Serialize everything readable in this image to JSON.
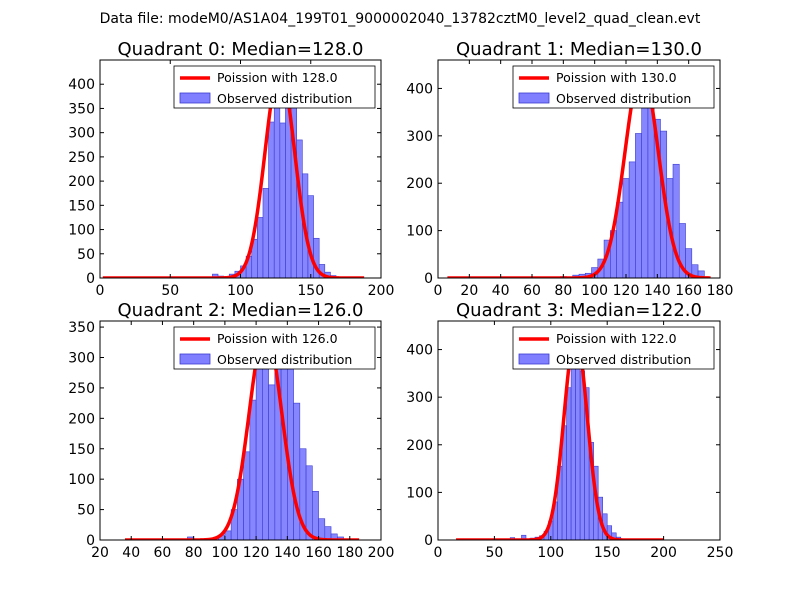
{
  "suptitle": "Data file: modeM0/AS1A04_199T01_9000002040_13782cztM0_level2_quad_clean.evt",
  "colors": {
    "hist_fill": "#7f7fff",
    "hist_edge": "#3b3bd0",
    "fit": "#ff0000",
    "axes": "#000000"
  },
  "chart_data": [
    {
      "type": "bar",
      "title": "Quadrant 0: Median=128.0",
      "xlabel": "",
      "ylabel": "",
      "xlim": [
        0,
        200
      ],
      "ylim": [
        0,
        450
      ],
      "xticks": [
        0,
        50,
        100,
        150,
        200
      ],
      "yticks": [
        0,
        50,
        100,
        150,
        200,
        250,
        300,
        350,
        400
      ],
      "legend": {
        "position": "top-right",
        "entries": [
          "Poission with 128.0",
          "Observed distribution"
        ]
      },
      "poisson_mean": 128.0,
      "poisson_peak": 430,
      "fit_range": [
        2,
        188
      ],
      "histogram": {
        "series_name": "Observed distribution",
        "bins": [
          [
            80,
            84,
            8
          ],
          [
            84,
            88,
            4
          ],
          [
            88,
            92,
            3
          ],
          [
            92,
            96,
            8
          ],
          [
            96,
            100,
            14
          ],
          [
            100,
            104,
            25
          ],
          [
            104,
            108,
            45
          ],
          [
            108,
            112,
            80
          ],
          [
            112,
            116,
            125
          ],
          [
            116,
            120,
            185
          ],
          [
            120,
            124,
            322
          ],
          [
            124,
            128,
            380
          ],
          [
            128,
            132,
            320
          ],
          [
            132,
            136,
            400
          ],
          [
            136,
            140,
            360
          ],
          [
            140,
            144,
            285
          ],
          [
            144,
            148,
            215
          ],
          [
            148,
            152,
            170
          ],
          [
            152,
            156,
            82
          ],
          [
            156,
            160,
            28
          ],
          [
            160,
            164,
            12
          ],
          [
            164,
            168,
            5
          ]
        ]
      }
    },
    {
      "type": "bar",
      "title": "Quadrant 1: Median=130.0",
      "xlabel": "",
      "ylabel": "",
      "xlim": [
        0,
        180
      ],
      "ylim": [
        0,
        460
      ],
      "xticks": [
        0,
        20,
        40,
        60,
        80,
        100,
        120,
        140,
        160,
        180
      ],
      "yticks": [
        0,
        100,
        200,
        300,
        400
      ],
      "legend": {
        "position": "top-right",
        "entries": [
          "Poission with 130.0",
          "Observed distribution"
        ]
      },
      "poisson_mean": 130.0,
      "poisson_peak": 440,
      "fit_range": [
        6,
        174
      ],
      "histogram": {
        "series_name": "Observed distribution",
        "bins": [
          [
            78,
            82,
            3
          ],
          [
            86,
            90,
            6
          ],
          [
            90,
            94,
            8
          ],
          [
            94,
            98,
            10
          ],
          [
            98,
            102,
            22
          ],
          [
            102,
            106,
            40
          ],
          [
            106,
            110,
            80
          ],
          [
            110,
            114,
            100
          ],
          [
            114,
            118,
            160
          ],
          [
            118,
            122,
            210
          ],
          [
            122,
            126,
            245
          ],
          [
            126,
            130,
            305
          ],
          [
            130,
            134,
            390
          ],
          [
            134,
            138,
            430
          ],
          [
            138,
            142,
            335
          ],
          [
            142,
            146,
            310
          ],
          [
            146,
            150,
            210
          ],
          [
            150,
            154,
            240
          ],
          [
            154,
            158,
            115
          ],
          [
            158,
            162,
            62
          ],
          [
            162,
            166,
            28
          ],
          [
            166,
            170,
            15
          ]
        ]
      }
    },
    {
      "type": "bar",
      "title": "Quadrant 2: Median=126.0",
      "xlabel": "",
      "ylabel": "",
      "xlim": [
        20,
        200
      ],
      "ylim": [
        0,
        360
      ],
      "xticks": [
        20,
        40,
        60,
        80,
        100,
        120,
        140,
        160,
        180,
        200
      ],
      "yticks": [
        0,
        50,
        100,
        150,
        200,
        250,
        300,
        350
      ],
      "legend": {
        "position": "top-right",
        "entries": [
          "Poission with 126.0",
          "Observed distribution"
        ]
      },
      "poisson_mean": 126.0,
      "poisson_peak": 345,
      "fit_range": [
        36,
        186
      ],
      "histogram": {
        "series_name": "Observed distribution",
        "bins": [
          [
            76,
            80,
            5
          ],
          [
            92,
            96,
            3
          ],
          [
            96,
            100,
            8
          ],
          [
            100,
            104,
            15
          ],
          [
            104,
            108,
            50
          ],
          [
            108,
            112,
            100
          ],
          [
            112,
            116,
            145
          ],
          [
            116,
            120,
            230
          ],
          [
            120,
            124,
            305
          ],
          [
            124,
            128,
            330
          ],
          [
            128,
            132,
            255
          ],
          [
            132,
            136,
            340
          ],
          [
            136,
            140,
            330
          ],
          [
            140,
            144,
            300
          ],
          [
            144,
            148,
            225
          ],
          [
            148,
            152,
            150
          ],
          [
            152,
            156,
            122
          ],
          [
            156,
            160,
            80
          ],
          [
            160,
            164,
            35
          ],
          [
            164,
            168,
            22
          ],
          [
            168,
            172,
            10
          ],
          [
            172,
            176,
            5
          ]
        ]
      }
    },
    {
      "type": "bar",
      "title": "Quadrant 3: Median=122.0",
      "xlabel": "",
      "ylabel": "",
      "xlim": [
        0,
        250
      ],
      "ylim": [
        0,
        460
      ],
      "xticks": [
        0,
        50,
        100,
        150,
        200,
        250
      ],
      "yticks": [
        0,
        100,
        200,
        300,
        400
      ],
      "legend": {
        "position": "top-right",
        "entries": [
          "Poission with 122.0",
          "Observed distribution"
        ]
      },
      "poisson_mean": 122.0,
      "poisson_peak": 430,
      "fit_range": [
        16,
        200
      ],
      "histogram": {
        "series_name": "Observed distribution",
        "bins": [
          [
            64,
            68,
            5
          ],
          [
            74,
            78,
            10
          ],
          [
            82,
            86,
            4
          ],
          [
            86,
            90,
            6
          ],
          [
            90,
            94,
            9
          ],
          [
            94,
            98,
            18
          ],
          [
            98,
            102,
            40
          ],
          [
            102,
            106,
            80
          ],
          [
            106,
            110,
            155
          ],
          [
            110,
            114,
            240
          ],
          [
            114,
            118,
            320
          ],
          [
            118,
            122,
            400
          ],
          [
            122,
            126,
            425
          ],
          [
            126,
            130,
            355
          ],
          [
            130,
            134,
            320
          ],
          [
            134,
            138,
            205
          ],
          [
            138,
            142,
            155
          ],
          [
            142,
            146,
            90
          ],
          [
            146,
            150,
            55
          ],
          [
            150,
            154,
            30
          ],
          [
            154,
            158,
            15
          ],
          [
            158,
            162,
            6
          ]
        ]
      }
    }
  ]
}
